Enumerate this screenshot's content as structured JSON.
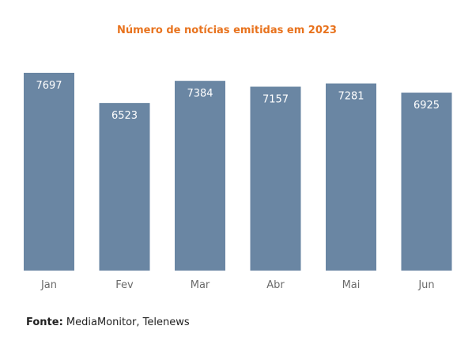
{
  "chart_data": {
    "type": "bar",
    "title": "Número de notícias emitidas em 2023",
    "categories": [
      "Jan",
      "Fev",
      "Mar",
      "Abr",
      "Mai",
      "Jun"
    ],
    "values": [
      7697,
      6523,
      7384,
      7157,
      7281,
      6925
    ],
    "xlabel": "",
    "ylabel": "",
    "grid": false,
    "show_y_axis": false,
    "data_labels": "inside-top",
    "colors": {
      "bar": "#6a86a3",
      "title": "#e8731e",
      "data_label": "#ffffff",
      "tick_label": "#6b6b6b"
    }
  },
  "source": {
    "label": "Fonte:",
    "text": "MediaMonitor, Telenews"
  }
}
